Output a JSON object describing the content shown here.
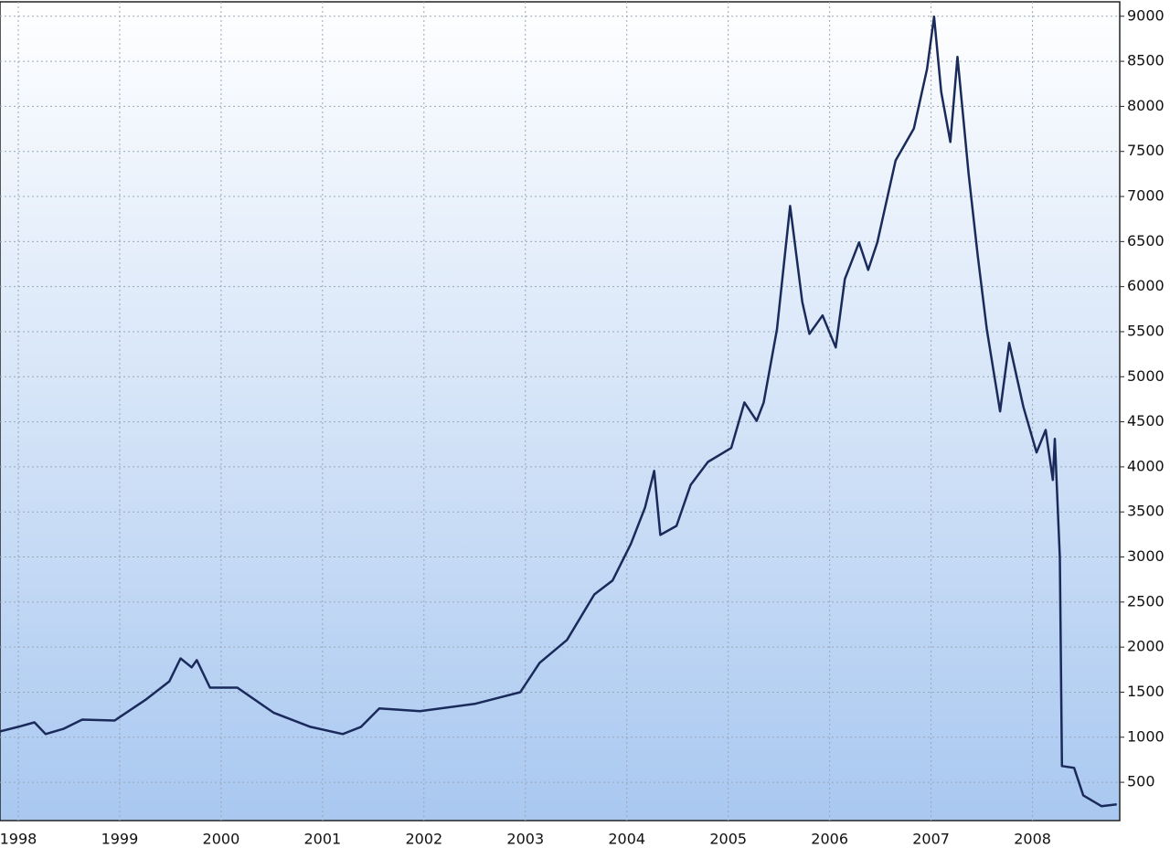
{
  "chart_data": {
    "type": "line",
    "x": [
      1997.82,
      1998.0,
      1998.16,
      1998.27,
      1998.45,
      1998.63,
      1998.95,
      1999.26,
      1999.49,
      1999.6,
      1999.71,
      1999.76,
      1999.89,
      2000.16,
      2000.52,
      2000.88,
      2001.2,
      2001.38,
      2001.56,
      2001.96,
      2002.5,
      2002.95,
      2003.14,
      2003.41,
      2003.68,
      2003.86,
      2004.04,
      2004.18,
      2004.27,
      2004.33,
      2004.49,
      2004.63,
      2004.8,
      2005.03,
      2005.16,
      2005.28,
      2005.35,
      2005.48,
      2005.61,
      2005.73,
      2005.8,
      2005.93,
      2006.06,
      2006.15,
      2006.29,
      2006.38,
      2006.47,
      2006.65,
      2006.83,
      2006.96,
      2007.03,
      2007.1,
      2007.19,
      2007.26,
      2007.37,
      2007.46,
      2007.55,
      2007.68,
      2007.77,
      2007.91,
      2008.04,
      2008.13,
      2008.2,
      2008.22,
      2008.27,
      2008.29,
      2008.41,
      2008.5,
      2008.68,
      2008.83
    ],
    "series": [
      {
        "color": "#1a2a5a",
        "values": [
          1065,
          1115,
          1165,
          1035,
          1095,
          1195,
          1185,
          1420,
          1620,
          1875,
          1775,
          1855,
          1550,
          1550,
          1270,
          1115,
          1035,
          1115,
          1320,
          1290,
          1370,
          1500,
          1825,
          2080,
          2585,
          2740,
          3145,
          3550,
          3955,
          3245,
          3345,
          3800,
          4055,
          4210,
          4715,
          4510,
          4715,
          5525,
          6895,
          5830,
          5475,
          5680,
          5325,
          6085,
          6490,
          6185,
          6490,
          7400,
          7755,
          8415,
          8995,
          8160,
          7605,
          8550,
          7250,
          6340,
          5525,
          4615,
          5375,
          4665,
          4160,
          4410,
          3855,
          4310,
          2990,
          680,
          660,
          355,
          235,
          255
        ]
      }
    ],
    "xlim": [
      1997.82,
      2008.86
    ],
    "xticks": [
      1998,
      1999,
      2000,
      2001,
      2002,
      2003,
      2004,
      2005,
      2006,
      2007,
      2008
    ],
    "ylim": [
      75,
      9160
    ],
    "yticks": [
      500,
      1000,
      1500,
      2000,
      2500,
      3000,
      3500,
      4000,
      4500,
      5000,
      5500,
      6000,
      6500,
      7000,
      7500,
      8000,
      8500,
      9000
    ],
    "grid": true
  }
}
